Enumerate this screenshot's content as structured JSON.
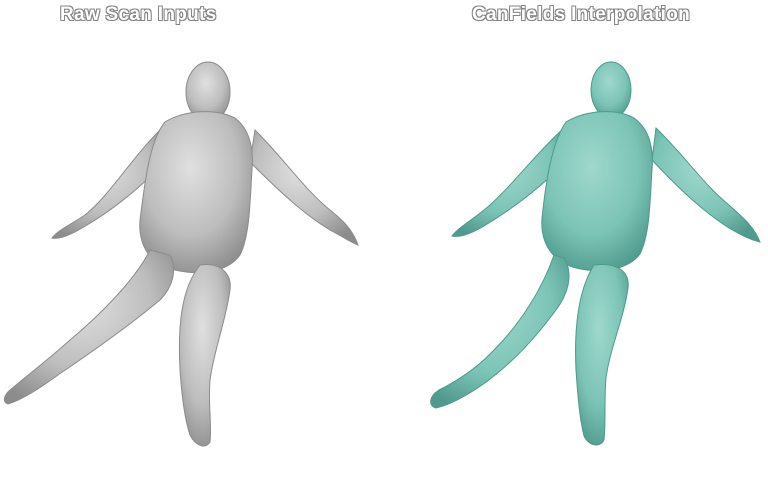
{
  "panels": {
    "left": {
      "caption": "Raw Scan Inputs",
      "color": "#bdbdbd",
      "shade": "#8c8c8c"
    },
    "right": {
      "caption": "CanFields Interpolation",
      "color": "#7cc4b6",
      "shade": "#4f9a8d"
    }
  }
}
